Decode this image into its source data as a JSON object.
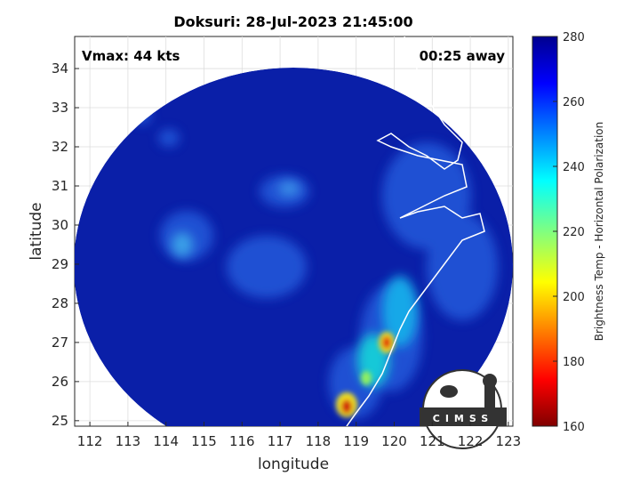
{
  "map": {
    "title": "Doksuri: 28-Jul-2023 21:45:00",
    "vmax_label": "Vmax: 44 kts",
    "time_label": "00:25 away",
    "xlabel": "longitude",
    "ylabel": "latitude",
    "xlim": [
      111.6,
      123.12
    ],
    "ylim": [
      24.86,
      34.82
    ],
    "xticks": [
      112,
      113,
      114,
      115,
      116,
      117,
      118,
      119,
      120,
      121,
      122,
      123
    ],
    "yticks": [
      25,
      26,
      27,
      28,
      29,
      30,
      31,
      32,
      33,
      34
    ],
    "colorbar": {
      "label": "Brightness Temp - Horizontal Polarization",
      "lim": [
        160,
        280
      ],
      "ticks": [
        160,
        180,
        200,
        220,
        240,
        260,
        280
      ]
    },
    "logo": "CIMSS"
  }
}
